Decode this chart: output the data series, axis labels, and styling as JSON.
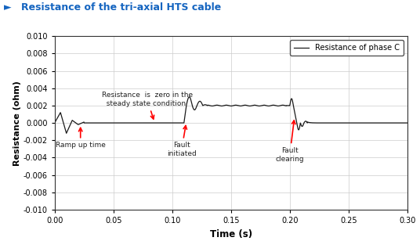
{
  "title": "Resistance of the tri-axial HTS cable",
  "xlabel": "Time (s)",
  "ylabel": "Resistance (ohm)",
  "xlim": [
    0.0,
    0.3
  ],
  "ylim": [
    -0.01,
    0.01
  ],
  "yticks": [
    -0.01,
    -0.008,
    -0.006,
    -0.004,
    -0.002,
    0.0,
    0.002,
    0.004,
    0.006,
    0.008,
    0.01
  ],
  "xticks": [
    0.0,
    0.05,
    0.1,
    0.15,
    0.2,
    0.25,
    0.3
  ],
  "legend_label": "Resistance of phase C",
  "title_color": "#1464C0",
  "line_color": "#1a1a1a",
  "annotation_arrow_color": "red",
  "annotation_text_color": "#222222",
  "grid_color": "#cccccc",
  "background_color": "#ffffff"
}
